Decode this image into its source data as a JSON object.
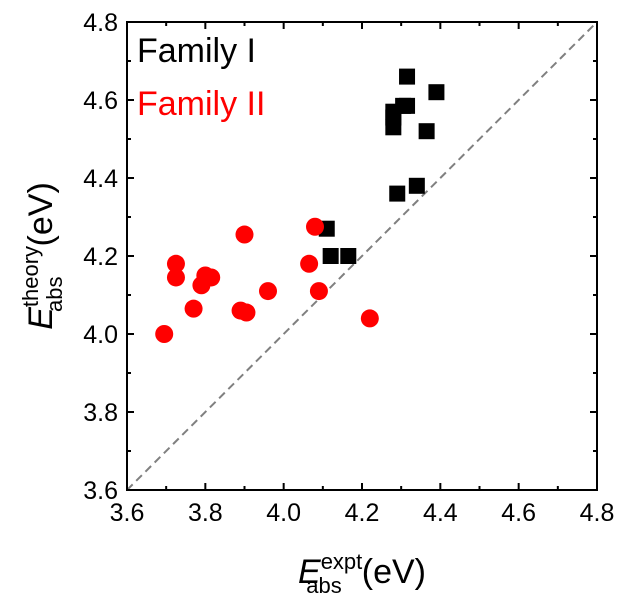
{
  "chart_data": {
    "type": "scatter",
    "title": "",
    "xlabel": {
      "main": "E",
      "sub": "abs",
      "sup": "expt",
      "unit": "(eV)"
    },
    "ylabel": {
      "main": "E",
      "sub": "abs",
      "sup": "theory",
      "unit": "(eV)"
    },
    "xlim": [
      3.6,
      4.8
    ],
    "ylim": [
      3.6,
      4.8
    ],
    "xticks": [
      "3.6",
      "3.8",
      "4.0",
      "4.2",
      "4.4",
      "4.6",
      "4.8"
    ],
    "yticks": [
      "3.6",
      "3.8",
      "4.0",
      "4.2",
      "4.4",
      "4.6",
      "4.8"
    ],
    "grid": false,
    "legend_position": "top-left",
    "reference_line": {
      "style": "dashed",
      "color": "#808080",
      "from": [
        3.6,
        3.6
      ],
      "to": [
        4.8,
        4.8
      ]
    },
    "series": [
      {
        "name": "Family I",
        "marker": "square",
        "color": "#000000",
        "points": [
          [
            4.11,
            4.27
          ],
          [
            4.12,
            4.2
          ],
          [
            4.165,
            4.2
          ],
          [
            4.29,
            4.36
          ],
          [
            4.34,
            4.38
          ],
          [
            4.28,
            4.53
          ],
          [
            4.28,
            4.555
          ],
          [
            4.28,
            4.57
          ],
          [
            4.305,
            4.585
          ],
          [
            4.315,
            4.585
          ],
          [
            4.315,
            4.66
          ],
          [
            4.365,
            4.52
          ],
          [
            4.39,
            4.62
          ]
        ]
      },
      {
        "name": "Family II",
        "marker": "circle",
        "color": "#ff0000",
        "points": [
          [
            3.695,
            4.0
          ],
          [
            3.725,
            4.18
          ],
          [
            3.725,
            4.145
          ],
          [
            3.77,
            4.065
          ],
          [
            3.79,
            4.125
          ],
          [
            3.8,
            4.15
          ],
          [
            3.815,
            4.145
          ],
          [
            3.89,
            4.06
          ],
          [
            3.905,
            4.055
          ],
          [
            3.9,
            4.255
          ],
          [
            3.96,
            4.11
          ],
          [
            4.065,
            4.18
          ],
          [
            4.08,
            4.275
          ],
          [
            4.09,
            4.11
          ],
          [
            4.22,
            4.04
          ]
        ]
      }
    ]
  }
}
